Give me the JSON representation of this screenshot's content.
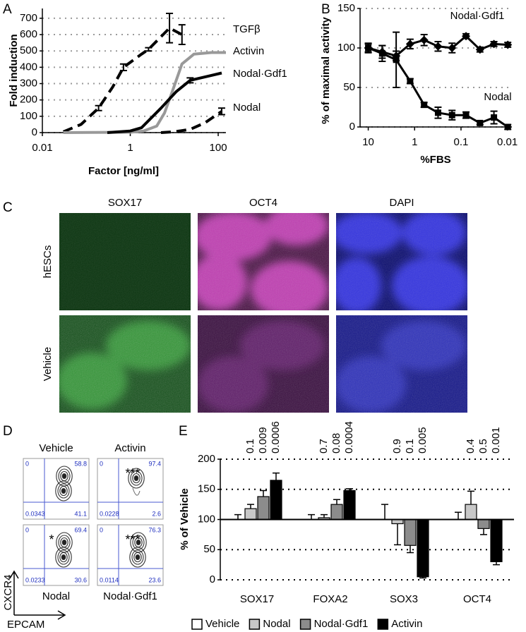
{
  "panel_labels": [
    "A",
    "B",
    "C",
    "D",
    "E"
  ],
  "chart_data": [
    {
      "type": "line",
      "ylabel": "Fold induction",
      "xlabel": "Factor [ng/ml]",
      "xscale": "log",
      "xlim": [
        0.01,
        150
      ],
      "xticks": [
        0.01,
        1,
        100
      ],
      "ylim": [
        0,
        760
      ],
      "yticks": [
        0,
        100,
        200,
        300,
        400,
        500,
        600,
        700
      ],
      "grid": true,
      "series": [
        {
          "name": "TGFβ",
          "color": "#000000",
          "dashed": true,
          "x": [
            0.03,
            0.076,
            0.19,
            0.4,
            0.7,
            1.8,
            2.6,
            7.8,
            15
          ],
          "values": [
            5,
            50,
            150,
            280,
            400,
            480,
            510,
            640,
            600
          ],
          "errors": [
            null,
            null,
            15,
            null,
            20,
            null,
            10,
            90,
            60
          ]
        },
        {
          "name": "Activin",
          "color": "#999999",
          "dashed": false,
          "x": [
            0.03,
            1,
            2,
            4,
            6,
            9,
            15,
            28,
            70,
            150
          ],
          "values": [
            0,
            2,
            10,
            40,
            120,
            250,
            420,
            480,
            490,
            490
          ],
          "errors": [
            null,
            null,
            null,
            null,
            null,
            null,
            null,
            null,
            null,
            null
          ]
        },
        {
          "name": "Nodal·Gdf1",
          "color": "#000000",
          "dashed": false,
          "x": [
            0.3,
            1,
            1.8,
            5,
            11,
            23,
            70,
            120
          ],
          "values": [
            0,
            10,
            30,
            150,
            250,
            320,
            350,
            365
          ],
          "errors": [
            null,
            null,
            null,
            null,
            null,
            15,
            null,
            null
          ]
        },
        {
          "name": "Nodal",
          "color": "#000000",
          "dashed": true,
          "x": [
            5,
            10,
            23,
            50,
            120
          ],
          "values": [
            0,
            5,
            20,
            60,
            130
          ],
          "errors": [
            null,
            null,
            null,
            null,
            20
          ]
        }
      ]
    },
    {
      "type": "line",
      "ylabel": "% of maximal activity",
      "xlabel": "%FBS",
      "xscale": "log",
      "xlim": [
        15,
        0.008
      ],
      "xticks": [
        10,
        1,
        0.1,
        0.01
      ],
      "ylim": [
        0,
        150
      ],
      "yticks": [
        0,
        50,
        100,
        150
      ],
      "grid": true,
      "x": [
        10,
        5,
        2.5,
        1.25,
        0.625,
        0.3125,
        0.156,
        0.078,
        0.039,
        0.0195,
        0.0098
      ],
      "series": [
        {
          "name": "Nodal·Gdf1",
          "color": "#000000",
          "marker": "diamond",
          "values": [
            100,
            95,
            90,
            105,
            110,
            102,
            100,
            115,
            98,
            105,
            104
          ],
          "errors": [
            5,
            8,
            6,
            6,
            7,
            6,
            6,
            3,
            3,
            3,
            3
          ]
        },
        {
          "name": "Nodal",
          "color": "#000000",
          "marker": "square",
          "values": [
            100,
            93,
            85,
            58,
            28,
            18,
            15,
            15,
            5,
            12,
            0
          ],
          "errors": [
            6,
            10,
            35,
            3,
            3,
            7,
            6,
            4,
            2,
            8,
            3
          ]
        }
      ]
    },
    {
      "type": "bar",
      "ylabel": "% of Vehicle",
      "categories": [
        "SOX17",
        "FOXA2",
        "SOX3",
        "OCT4"
      ],
      "ylim": [
        0,
        200
      ],
      "yticks": [
        0,
        50,
        100,
        150,
        200
      ],
      "base": 100,
      "grid": true,
      "legend": "bottom",
      "series": [
        {
          "name": "Vehicle",
          "color": "#ffffff",
          "values": [
            100,
            100,
            100,
            100
          ],
          "errors": [
            8,
            8,
            25,
            12
          ]
        },
        {
          "name": "Nodal",
          "color": "#c8c8c8",
          "values": [
            118,
            103,
            93,
            125
          ],
          "errors": [
            7,
            5,
            35,
            22
          ],
          "p_values": [
            "0.1",
            "0.7",
            "0.9",
            "0.4"
          ]
        },
        {
          "name": "Nodal·Gdf1",
          "color": "#8c8c8c",
          "values": [
            138,
            125,
            57,
            85
          ],
          "errors": [
            10,
            8,
            12,
            10
          ],
          "p_values": [
            "0.009",
            "0.08",
            "0.1",
            "0.5"
          ]
        },
        {
          "name": "Activin",
          "color": "#000000",
          "values": [
            165,
            148,
            5,
            30
          ],
          "errors": [
            12,
            3,
            2,
            5
          ],
          "p_values": [
            "0.0006",
            "0.0004",
            "0.005",
            "0.001"
          ]
        }
      ]
    }
  ],
  "microscopy": {
    "columns": [
      "SOX17",
      "OCT4",
      "DAPI"
    ],
    "rows": [
      "hESCs",
      "Vehicle"
    ]
  },
  "flow_cytometry": {
    "x_axis": "EPCAM",
    "y_axis": "CXCR4",
    "plots": [
      {
        "label": "Vehicle",
        "quadrants": [
          0,
          58.8,
          0.0343,
          41.1
        ]
      },
      {
        "label": "Activin",
        "quadrants": [
          0,
          97.4,
          0.0228,
          2.6
        ],
        "significance": "***"
      },
      {
        "label": "Nodal",
        "quadrants": [
          0,
          69.4,
          0.0233,
          30.6
        ],
        "significance": "*"
      },
      {
        "label": "Nodal·Gdf1",
        "quadrants": [
          0,
          76.3,
          0.0114,
          23.6
        ],
        "significance": "***"
      }
    ]
  }
}
